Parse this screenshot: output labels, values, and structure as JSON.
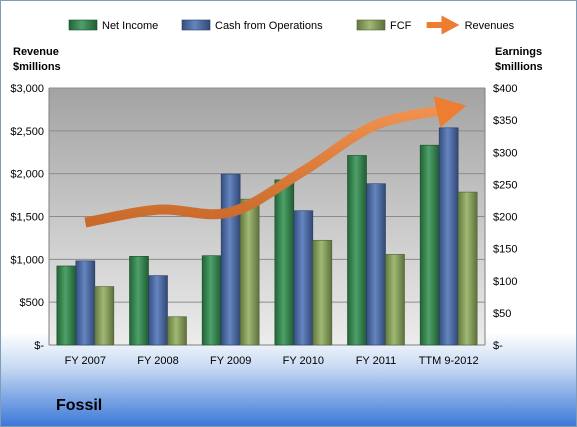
{
  "company": "Fossil",
  "chart_data": {
    "type": "bar",
    "categories": [
      "FY 2007",
      "FY 2008",
      "FY 2009",
      "FY 2010",
      "FY 2011",
      "TTM 9-2012"
    ],
    "series": [
      {
        "name": "Net Income",
        "axis": "right",
        "color": "#2f8f4e",
        "values": [
          123,
          138,
          139,
          257,
          295,
          311
        ]
      },
      {
        "name": "Cash from Operations",
        "axis": "right",
        "color": "#4a6fb5",
        "values": [
          131,
          108,
          266,
          209,
          251,
          338
        ]
      },
      {
        "name": "FCF",
        "axis": "right",
        "color": "#8fad5a",
        "values": [
          91,
          44,
          227,
          163,
          141,
          238
        ]
      }
    ],
    "line_series": {
      "name": "Revenues",
      "axis": "left",
      "color": "#ed7d31",
      "values": [
        1430,
        1580,
        1550,
        2030,
        2570,
        2750
      ]
    },
    "left_axis": {
      "label_lines": [
        "Revenue",
        "$millions"
      ],
      "min": 0,
      "max": 3000,
      "step": 500,
      "tick_labels": [
        "$-",
        "$500",
        "$1,000",
        "$1,500",
        "$2,000",
        "$2,500",
        "$3,000"
      ]
    },
    "right_axis": {
      "label_lines": [
        "Earnings",
        "$millions"
      ],
      "min": 0,
      "max": 400,
      "step": 50,
      "tick_labels": [
        "$-",
        "$50",
        "$100",
        "$150",
        "$200",
        "$250",
        "$300",
        "$350",
        "$400"
      ]
    },
    "legend": {
      "position": "top",
      "items": [
        "Net Income",
        "Cash from Operations",
        "FCF",
        "Revenues"
      ]
    },
    "grid": true
  }
}
